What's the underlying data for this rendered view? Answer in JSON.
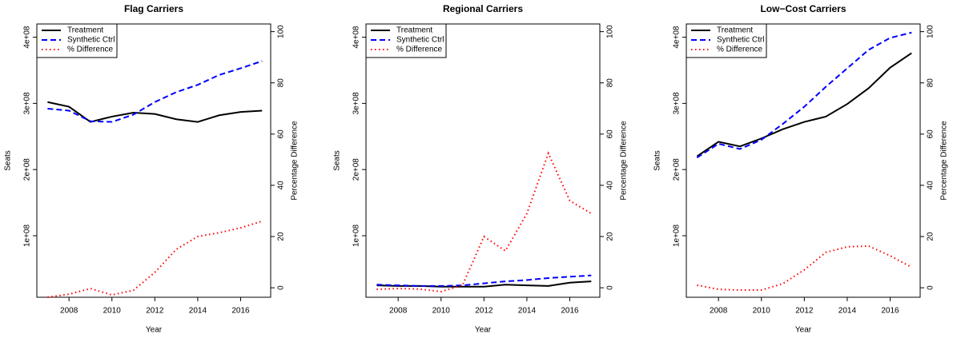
{
  "chart_data": [
    {
      "type": "line",
      "title": "Flag Carriers",
      "x_label": "Year",
      "y_label": "Seats",
      "y2_label": "Percentage Difference",
      "legend": "top-left",
      "x": [
        2007,
        2008,
        2009,
        2010,
        2011,
        2012,
        2013,
        2014,
        2015,
        2016,
        2017
      ],
      "xlim": [
        2006.5,
        2017.4
      ],
      "xticks": [
        2008,
        2010,
        2012,
        2014,
        2016
      ],
      "ylim": [
        7000000,
        420000000
      ],
      "yticks": [
        {
          "value": 100000000,
          "label": "1e+08"
        },
        {
          "value": 200000000,
          "label": "2e+08"
        },
        {
          "value": 300000000,
          "label": "3e+08"
        },
        {
          "value": 400000000,
          "label": "4e+08"
        }
      ],
      "y2lim": [
        -3.7,
        103
      ],
      "y2ticks": [
        0,
        20,
        40,
        60,
        80,
        100
      ],
      "series": [
        {
          "name": "Treatment",
          "color": "#000000",
          "linestyle": "solid",
          "values": [
            302000000,
            295000000,
            272000000,
            280000000,
            286000000,
            284000000,
            276000000,
            272000000,
            282000000,
            287000000,
            289000000
          ]
        },
        {
          "name": "Synthetic Ctrl",
          "color": "#0000ff",
          "linestyle": "dashed",
          "values": [
            292000000,
            289000000,
            273000000,
            272000000,
            283000000,
            302000000,
            317000000,
            328000000,
            343000000,
            353000000,
            364000000
          ]
        },
        {
          "name": "% Difference",
          "color": "#ff0000",
          "linestyle": "dotted",
          "axis": "y2",
          "values": [
            -3.7,
            -2.5,
            -0.3,
            -2.8,
            -1,
            6,
            15,
            20,
            21.5,
            23.4,
            26
          ]
        }
      ]
    },
    {
      "type": "line",
      "title": "Regional Carriers",
      "x_label": "Year",
      "y_label": "Seats",
      "y2_label": "Percentage Difference",
      "legend": "top-left",
      "x": [
        2007,
        2008,
        2009,
        2010,
        2011,
        2012,
        2013,
        2014,
        2015,
        2016,
        2017
      ],
      "xlim": [
        2006.5,
        2017.4
      ],
      "xticks": [
        2008,
        2010,
        2012,
        2014,
        2016
      ],
      "ylim": [
        7000000,
        420000000
      ],
      "yticks": [
        {
          "value": 100000000,
          "label": "1e+08"
        },
        {
          "value": 200000000,
          "label": "2e+08"
        },
        {
          "value": 300000000,
          "label": "3e+08"
        },
        {
          "value": 400000000,
          "label": "4e+08"
        }
      ],
      "y2lim": [
        -3.7,
        103
      ],
      "y2ticks": [
        0,
        20,
        40,
        60,
        80,
        100
      ],
      "series": [
        {
          "name": "Treatment",
          "color": "#000000",
          "linestyle": "solid",
          "values": [
            25000000,
            24000000,
            24000000,
            23000000,
            23000000,
            23000000,
            26000000,
            25000000,
            24000000,
            29000000,
            31000000
          ]
        },
        {
          "name": "Synthetic Ctrl",
          "color": "#0000ff",
          "linestyle": "dashed",
          "values": [
            26000000,
            25000000,
            24000000,
            24000000,
            25000000,
            28000000,
            31000000,
            33000000,
            36000000,
            38000000,
            40000000
          ]
        },
        {
          "name": "% Difference",
          "color": "#ff0000",
          "linestyle": "dotted",
          "axis": "y2",
          "values": [
            -0.6,
            -0.3,
            -0.5,
            -1.5,
            1,
            20,
            14.4,
            29,
            52.5,
            34,
            29
          ]
        }
      ]
    },
    {
      "type": "line",
      "title": "Low−Cost Carriers",
      "x_label": "Year",
      "y_label": "Seats",
      "y2_label": "Percentage Difference",
      "legend": "top-left",
      "x": [
        2007,
        2008,
        2009,
        2010,
        2011,
        2012,
        2013,
        2014,
        2015,
        2016,
        2017
      ],
      "xlim": [
        2006.5,
        2017.4
      ],
      "xticks": [
        2008,
        2010,
        2012,
        2014,
        2016
      ],
      "ylim": [
        7000000,
        420000000
      ],
      "yticks": [
        {
          "value": 100000000,
          "label": "1e+08"
        },
        {
          "value": 200000000,
          "label": "2e+08"
        },
        {
          "value": 300000000,
          "label": "3e+08"
        },
        {
          "value": 400000000,
          "label": "4e+08"
        }
      ],
      "y2lim": [
        -3.7,
        103
      ],
      "y2ticks": [
        0,
        20,
        40,
        60,
        80,
        100
      ],
      "series": [
        {
          "name": "Treatment",
          "color": "#000000",
          "linestyle": "solid",
          "values": [
            220000000,
            242000000,
            235000000,
            247000000,
            261000000,
            272000000,
            280000000,
            299000000,
            323000000,
            354000000,
            376000000
          ]
        },
        {
          "name": "Synthetic Ctrl",
          "color": "#0000ff",
          "linestyle": "dashed",
          "values": [
            218000000,
            239000000,
            231000000,
            245000000,
            269000000,
            295000000,
            325000000,
            353000000,
            381000000,
            399000000,
            407000000
          ]
        },
        {
          "name": "% Difference",
          "color": "#ff0000",
          "linestyle": "dotted",
          "axis": "y2",
          "values": [
            1,
            -0.6,
            -0.9,
            -0.9,
            1.6,
            7,
            13.8,
            16,
            16.3,
            12.5,
            8
          ]
        }
      ]
    }
  ]
}
